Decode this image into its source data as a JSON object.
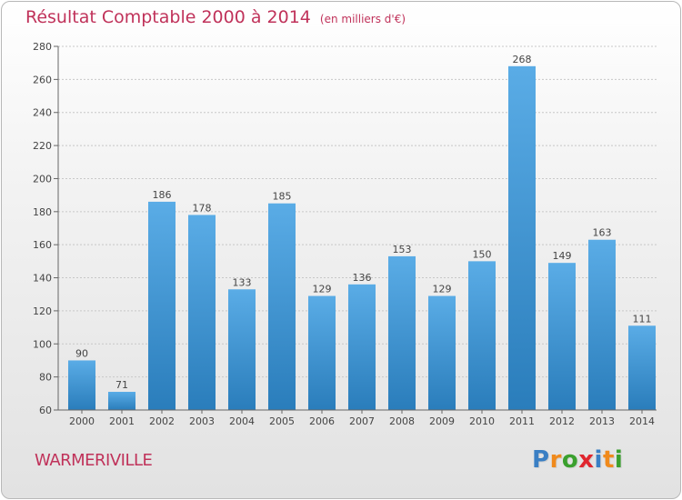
{
  "title": "Résultat Comptable 2000 à 2014",
  "subtitle": "(en milliers d'€)",
  "place": "WARMERIVILLE",
  "logo": {
    "letters": [
      "P",
      "r",
      "o",
      "x",
      "i",
      "t",
      "i"
    ],
    "colors": [
      "#3a7fc4",
      "#f08a1c",
      "#3aa02e",
      "#e0262e",
      "#3a7fc4",
      "#f08a1c",
      "#3aa02e"
    ]
  },
  "colors": {
    "accent": "#c0325a",
    "bar_top": "#5aace6",
    "bar_bottom": "#2a7dbb"
  },
  "chart_data": {
    "type": "bar",
    "categories": [
      "2000",
      "2001",
      "2002",
      "2003",
      "2004",
      "2005",
      "2006",
      "2007",
      "2008",
      "2009",
      "2010",
      "2011",
      "2012",
      "2013",
      "2014"
    ],
    "values": [
      90,
      71,
      186,
      178,
      133,
      185,
      129,
      136,
      153,
      129,
      150,
      268,
      149,
      163,
      111
    ],
    "title": "Résultat Comptable 2000 à 2014",
    "xlabel": "",
    "ylabel": "",
    "ylim": [
      60,
      280
    ],
    "yticks": [
      60,
      80,
      100,
      120,
      140,
      160,
      180,
      200,
      220,
      240,
      260,
      280
    ],
    "grid": true,
    "legend": "none"
  }
}
